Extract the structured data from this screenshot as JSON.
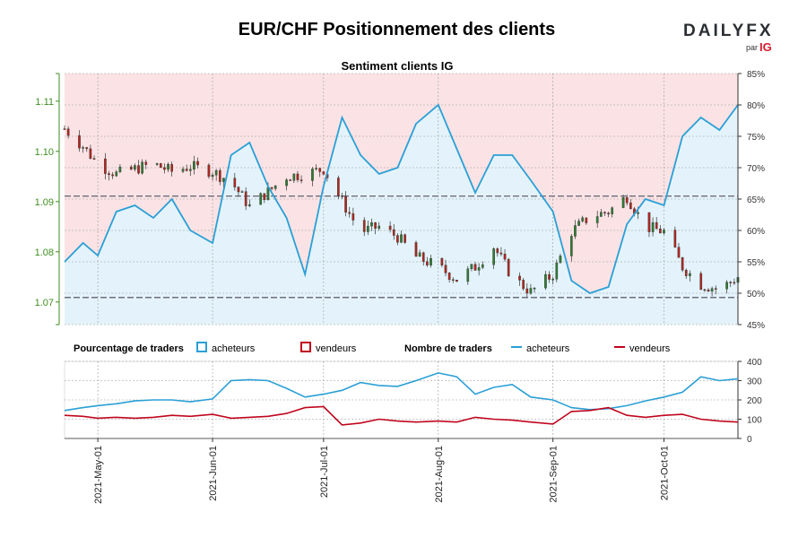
{
  "header": {
    "title": "EUR/CHF Positionnement des clients",
    "logo_word": "DAILYFX",
    "logo_by": "par",
    "logo_ig": "IG"
  },
  "chart_data": [
    {
      "type": "line",
      "title": "Sentiment clients IG",
      "description_series": [
        "price (candlestick, left axis)",
        "pourcentage acheteurs (right axis)"
      ],
      "y_left": {
        "ticks": [
          "1.07",
          "1.08",
          "1.09",
          "1.10",
          "1.11"
        ],
        "range": [
          1.0655,
          1.1155
        ]
      },
      "y_right": {
        "ticks": [
          "45%",
          "50%",
          "55%",
          "60%",
          "65%",
          "70%",
          "75%",
          "80%",
          "85%"
        ],
        "range": [
          45,
          85
        ]
      },
      "reference_lines": [
        1.0911,
        1.0709
      ],
      "x": [
        "2021-04-22",
        "2021-04-27",
        "2021-05-01",
        "2021-05-06",
        "2021-05-11",
        "2021-05-16",
        "2021-05-21",
        "2021-05-26",
        "2021-06-01",
        "2021-06-06",
        "2021-06-11",
        "2021-06-16",
        "2021-06-21",
        "2021-06-26",
        "2021-07-01",
        "2021-07-06",
        "2021-07-11",
        "2021-07-16",
        "2021-07-21",
        "2021-07-26",
        "2021-08-01",
        "2021-08-06",
        "2021-08-11",
        "2021-08-16",
        "2021-08-21",
        "2021-08-26",
        "2021-09-01",
        "2021-09-06",
        "2021-09-11",
        "2021-09-16",
        "2021-09-21",
        "2021-09-26",
        "2021-10-01",
        "2021-10-06",
        "2021-10-11",
        "2021-10-16",
        "2021-10-21"
      ],
      "price": [
        1.1045,
        1.101,
        1.0975,
        1.0955,
        1.0965,
        1.0975,
        1.096,
        1.097,
        1.096,
        1.094,
        1.089,
        1.092,
        1.095,
        1.0955,
        1.0965,
        1.09,
        1.084,
        1.085,
        1.083,
        1.079,
        1.077,
        1.0745,
        1.077,
        1.081,
        1.075,
        1.072,
        1.0755,
        1.084,
        1.087,
        1.088,
        1.091,
        1.085,
        1.084,
        1.077,
        1.0735,
        1.0725,
        1.075
      ],
      "long_pct": [
        55,
        58,
        56,
        63,
        64,
        62,
        65,
        60,
        58,
        72,
        74,
        67,
        62,
        53,
        67,
        78,
        72,
        69,
        70,
        77,
        80,
        73,
        66,
        72,
        72,
        68,
        63,
        52,
        50,
        51,
        61,
        65,
        64,
        75,
        78,
        76,
        80
      ],
      "x_ticks": [
        "2021-May-01",
        "2021-Jun-01",
        "2021-Jul-01",
        "2021-Aug-01",
        "2021-Sep-01",
        "2021-Oct-01"
      ],
      "x_tick_dates": [
        "2021-05-01",
        "2021-06-01",
        "2021-07-01",
        "2021-08-01",
        "2021-09-01",
        "2021-10-01"
      ]
    },
    {
      "type": "line",
      "title": "",
      "y": {
        "ticks": [
          "0",
          "100",
          "200",
          "300",
          "400"
        ],
        "range": [
          0,
          400
        ]
      },
      "x": [
        "2021-04-22",
        "2021-04-27",
        "2021-05-01",
        "2021-05-06",
        "2021-05-11",
        "2021-05-16",
        "2021-05-21",
        "2021-05-26",
        "2021-06-01",
        "2021-06-06",
        "2021-06-11",
        "2021-06-16",
        "2021-06-21",
        "2021-06-26",
        "2021-07-01",
        "2021-07-06",
        "2021-07-11",
        "2021-07-16",
        "2021-07-21",
        "2021-07-26",
        "2021-08-01",
        "2021-08-06",
        "2021-08-11",
        "2021-08-16",
        "2021-08-21",
        "2021-08-26",
        "2021-09-01",
        "2021-09-06",
        "2021-09-11",
        "2021-09-16",
        "2021-09-21",
        "2021-09-26",
        "2021-10-01",
        "2021-10-06",
        "2021-10-11",
        "2021-10-16",
        "2021-10-21"
      ],
      "series": [
        {
          "name": "acheteurs",
          "color": "#2a9fd6",
          "values": [
            145,
            160,
            170,
            180,
            195,
            200,
            200,
            190,
            205,
            300,
            305,
            300,
            260,
            215,
            230,
            250,
            290,
            275,
            270,
            300,
            340,
            320,
            230,
            265,
            280,
            215,
            200,
            160,
            150,
            155,
            170,
            195,
            215,
            240,
            320,
            300,
            310
          ]
        },
        {
          "name": "vendeurs",
          "color": "#c0061d",
          "values": [
            120,
            115,
            105,
            110,
            105,
            110,
            120,
            115,
            125,
            105,
            110,
            115,
            130,
            160,
            165,
            70,
            80,
            100,
            90,
            85,
            90,
            85,
            110,
            100,
            95,
            85,
            75,
            140,
            145,
            160,
            120,
            110,
            120,
            125,
            100,
            90,
            85
          ]
        }
      ]
    }
  ],
  "legend": {
    "pct_label": "Pourcentage de traders",
    "pct_long": "acheteurs",
    "pct_short": "vendeurs",
    "count_label": "Nombre de traders",
    "count_long": "acheteurs",
    "count_short": "vendeurs"
  },
  "colors": {
    "long": "#2a9fd6",
    "short": "#c0061d",
    "long_fill": "#e4f3fb",
    "short_fill": "#fbe3e5",
    "candle_up": "#2f7d32",
    "candle_down": "#b3261e",
    "axis_green": "#3e8e1f"
  }
}
